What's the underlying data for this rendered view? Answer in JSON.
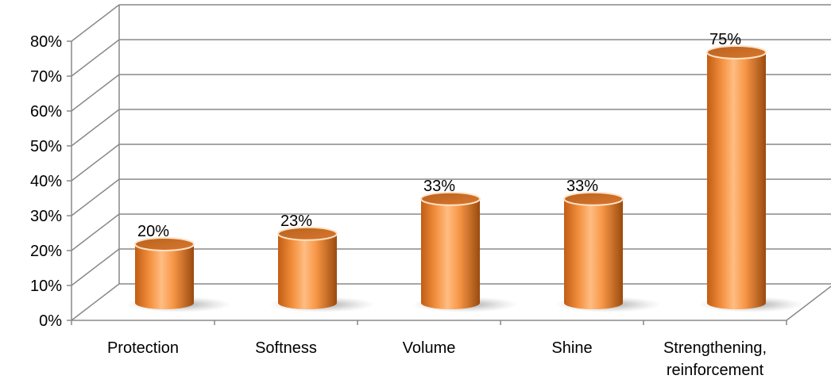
{
  "chart_data": {
    "type": "bar",
    "style": "3d-cylinder",
    "categories": [
      "Protection",
      "Softness",
      "Volume",
      "Shine",
      "Strengthening, reinforcement"
    ],
    "values": [
      20,
      23,
      33,
      33,
      75
    ],
    "data_labels": [
      "20%",
      "23%",
      "33%",
      "33%",
      "75%"
    ],
    "yticks": [
      "0%",
      "10%",
      "20%",
      "30%",
      "40%",
      "50%",
      "60%",
      "70%",
      "80%"
    ],
    "ylim": [
      0,
      80
    ],
    "grid": true,
    "legend": "none",
    "bar_color": "#F79646",
    "gridline_color": "#888888"
  }
}
